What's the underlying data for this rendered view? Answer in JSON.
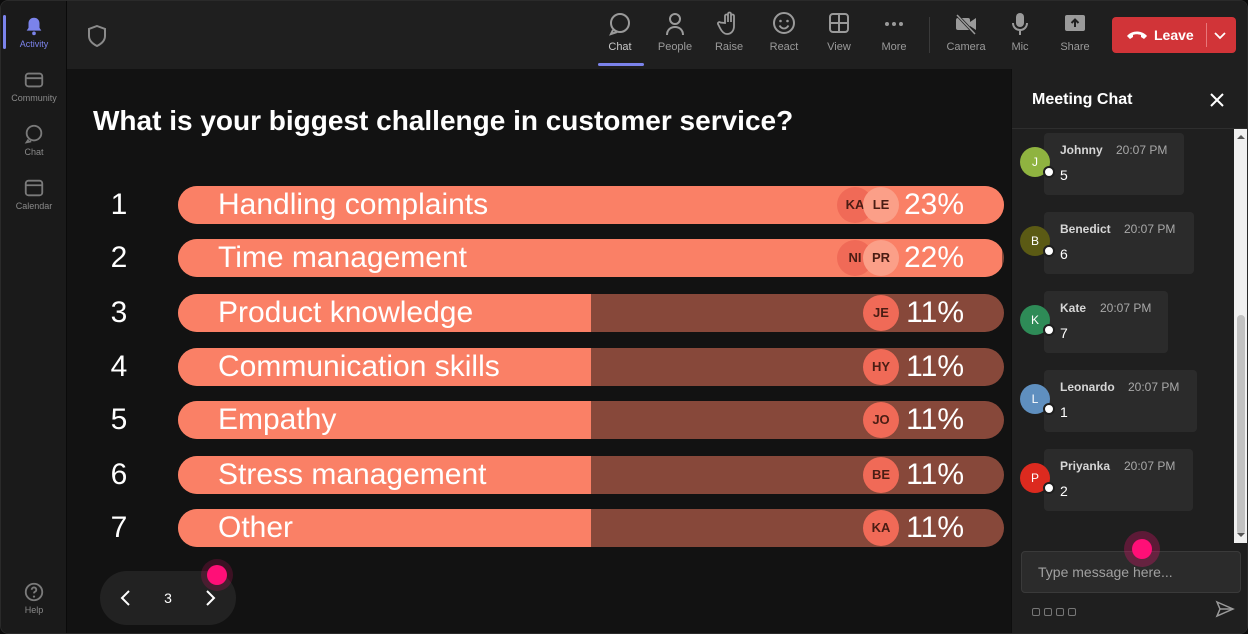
{
  "colors": {
    "accent": "#7b83eb",
    "bar_fill": "#fa8066",
    "bar_track": "#87483a",
    "leave": "#d13438",
    "pointer": "#ff0f77"
  },
  "rail": [
    {
      "label": "Activity",
      "icon": "bell-icon",
      "active": true
    },
    {
      "label": "Community",
      "icon": "community-icon"
    },
    {
      "label": "Chat",
      "icon": "chat-icon"
    },
    {
      "label": "Calendar",
      "icon": "calendar-icon"
    },
    {
      "label": "Help",
      "icon": "help-icon"
    }
  ],
  "toolbar": {
    "chat": "Chat",
    "people": "People",
    "raise": "Raise",
    "react": "React",
    "view": "View",
    "more": "More",
    "camera": "Camera",
    "mic": "Mic",
    "share": "Share",
    "leave": "Leave"
  },
  "poll": {
    "question": "What is your biggest challenge in customer service?",
    "page": "3",
    "options": [
      {
        "num": "1",
        "label": "Handling complaints",
        "pct": "23%",
        "fill": 1.0,
        "avatars": [
          "KA",
          "LE"
        ]
      },
      {
        "num": "2",
        "label": "Time management",
        "pct": "22%",
        "fill": 0.998,
        "avatars": [
          "NI",
          "PR"
        ]
      },
      {
        "num": "3",
        "label": "Product knowledge",
        "pct": "11%",
        "fill": 0.5,
        "avatars": [
          "JE"
        ]
      },
      {
        "num": "4",
        "label": "Communication skills",
        "pct": "11%",
        "fill": 0.5,
        "avatars": [
          "HY"
        ]
      },
      {
        "num": "5",
        "label": "Empathy",
        "pct": "11%",
        "fill": 0.5,
        "avatars": [
          "JO"
        ]
      },
      {
        "num": "6",
        "label": "Stress management",
        "pct": "11%",
        "fill": 0.5,
        "avatars": [
          "BE"
        ]
      },
      {
        "num": "7",
        "label": "Other",
        "pct": "11%",
        "fill": 0.5,
        "avatars": [
          "KA"
        ]
      }
    ]
  },
  "chat": {
    "title": "Meeting Chat",
    "placeholder": "Type message here...",
    "messages": [
      {
        "initial": "J",
        "name": "Johnny",
        "time": "20:07 PM",
        "text": "5",
        "color": "#8fb340"
      },
      {
        "initial": "B",
        "name": "Benedict",
        "time": "20:07 PM",
        "text": "6",
        "color": "#5b5a14"
      },
      {
        "initial": "K",
        "name": "Kate",
        "time": "20:07 PM",
        "text": "7",
        "color": "#2e8b57"
      },
      {
        "initial": "L",
        "name": "Leonardo",
        "time": "20:07 PM",
        "text": "1",
        "color": "#5f8fbf"
      },
      {
        "initial": "P",
        "name": "Priyanka",
        "time": "20:07 PM",
        "text": "2",
        "color": "#dc2a1f"
      }
    ]
  }
}
